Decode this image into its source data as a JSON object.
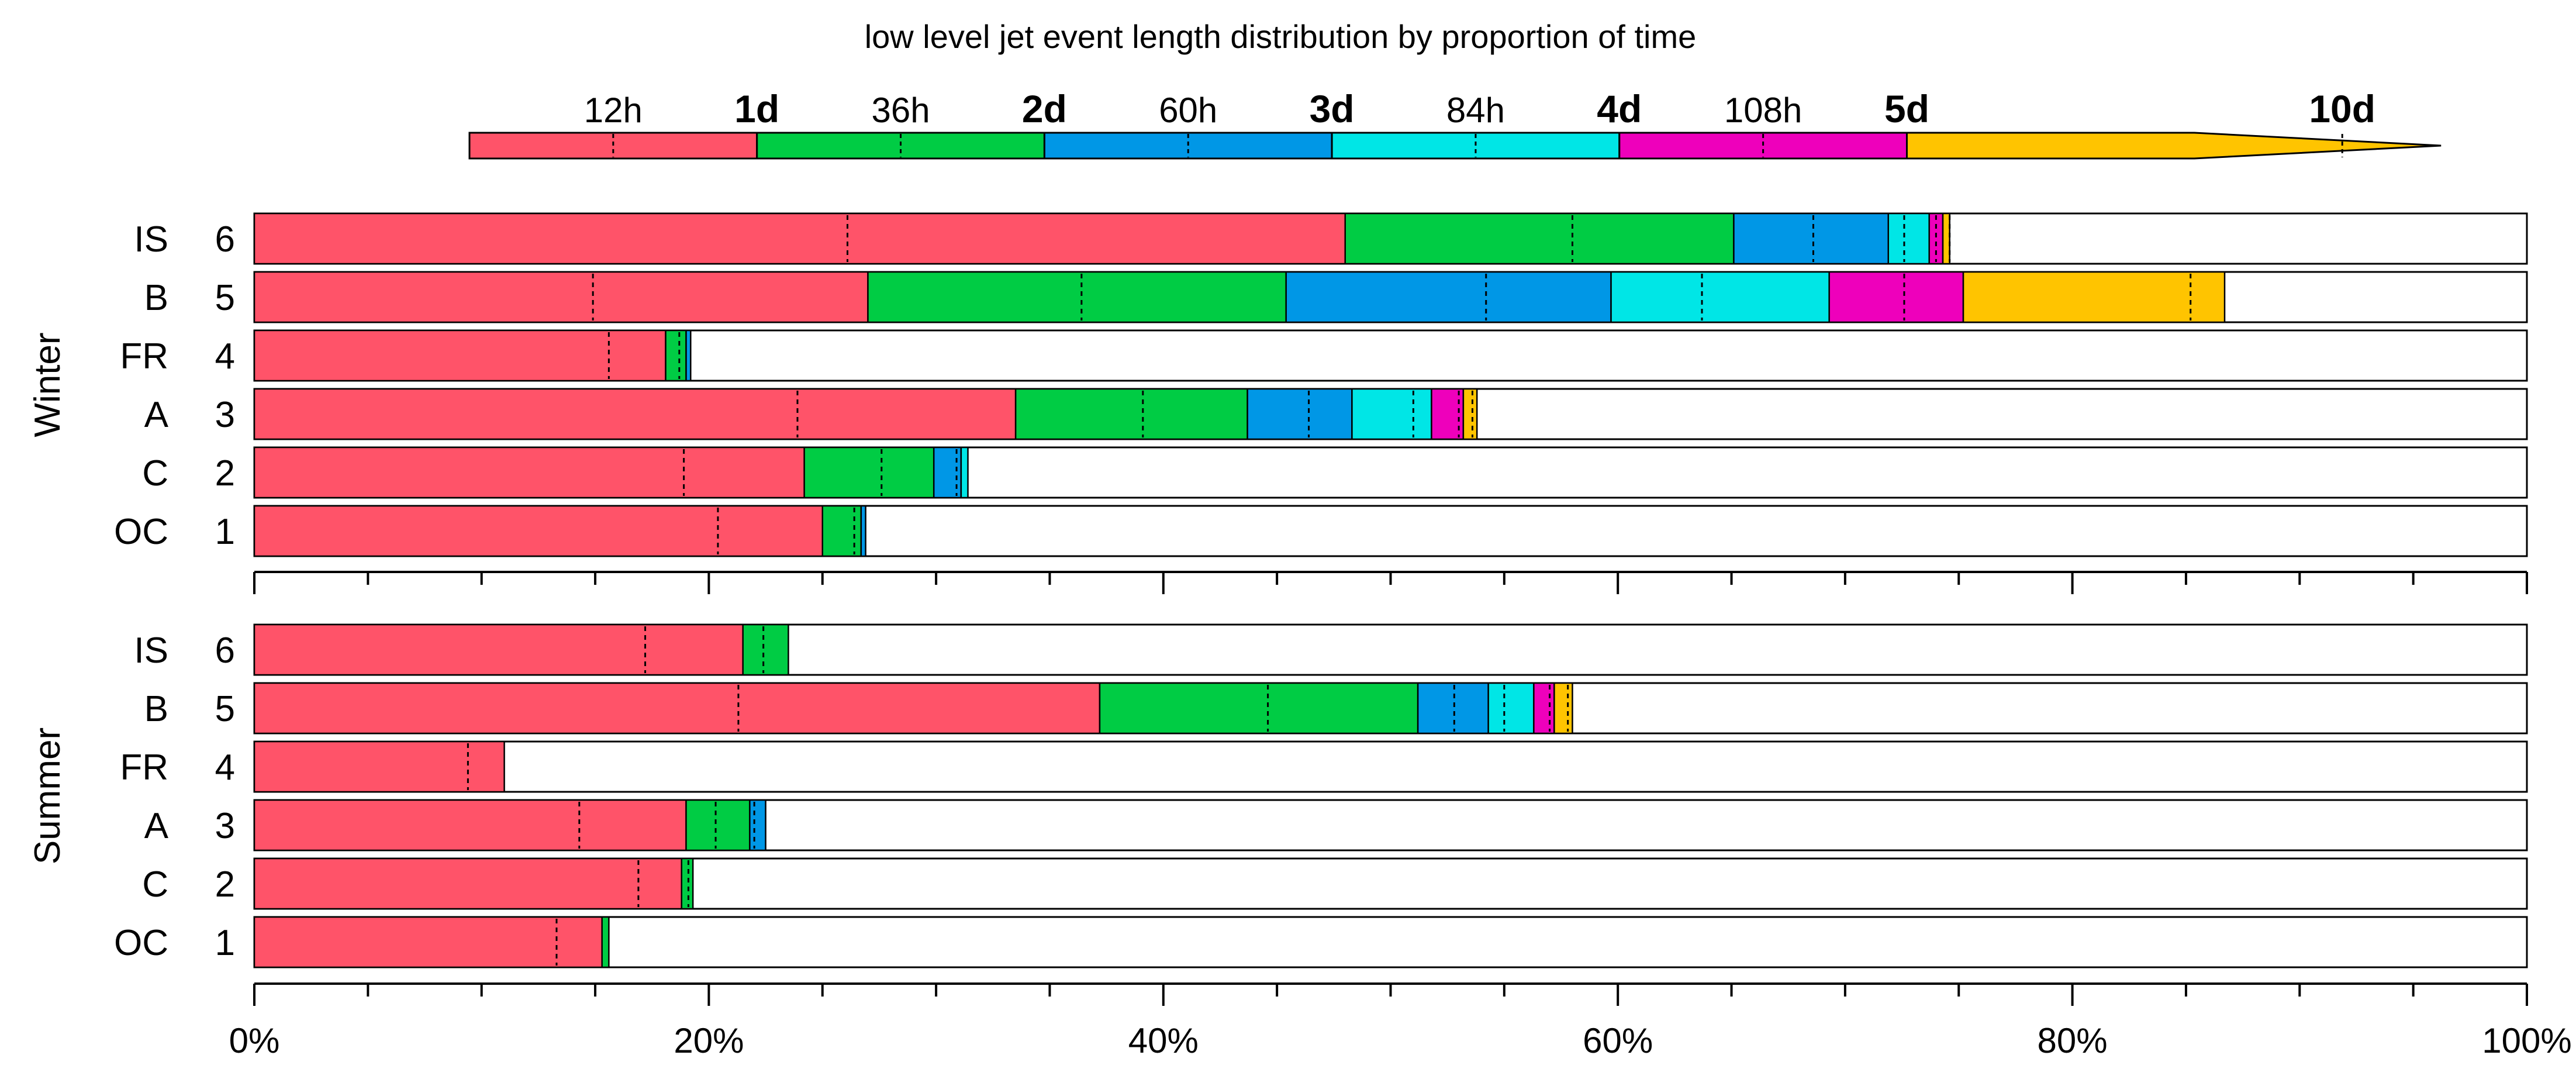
{
  "chart_data": {
    "type": "bar",
    "orientation": "horizontal",
    "stacked": true,
    "title": "low level jet event length distribution by proportion of time",
    "legend": {
      "placement": "top",
      "shape": "arrow",
      "entries": [
        {
          "label": "12h",
          "bold": false,
          "color": "#FF5369"
        },
        {
          "label": "1d",
          "bold": true,
          "color": "#00CC44"
        },
        {
          "label": "36h",
          "bold": false,
          "color": "#0097E6"
        },
        {
          "label": "2d",
          "bold": true,
          "color": "#00E6E6"
        },
        {
          "label": "60h",
          "bold": false,
          "color": "#EE00BB"
        },
        {
          "label": "3d",
          "bold": true,
          "color": "#FFC400"
        },
        {
          "label": "84h",
          "bold": false
        },
        {
          "label": "4d",
          "bold": true
        },
        {
          "label": "108h",
          "bold": false
        },
        {
          "label": "5d",
          "bold": true
        },
        {
          "label": "10d",
          "bold": true
        }
      ]
    },
    "xaxis": {
      "min": 0,
      "max": 100,
      "ticks": [
        "0%",
        "20%",
        "40%",
        "60%",
        "80%",
        "100%"
      ]
    },
    "panels": [
      {
        "name": "Winter",
        "rows": [
          {
            "region": "IS",
            "rank": "6",
            "segments": [
              48.0,
              17.1,
              6.8,
              1.8,
              0.6,
              0.3
            ],
            "dashes": [
              26.1,
              58.0,
              68.6,
              72.6,
              74.0,
              74.6
            ]
          },
          {
            "region": "B",
            "rank": "5",
            "segments": [
              27.0,
              18.4,
              14.3,
              9.6,
              5.9,
              11.5
            ],
            "dashes": [
              14.9,
              36.4,
              54.2,
              63.7,
              72.6,
              85.2
            ]
          },
          {
            "region": "FR",
            "rank": "4",
            "segments": [
              18.1,
              0.9,
              0.2
            ],
            "dashes": [
              15.6,
              18.7
            ]
          },
          {
            "region": "A",
            "rank": "3",
            "segments": [
              33.5,
              10.2,
              4.6,
              3.5,
              1.4,
              0.6
            ],
            "dashes": [
              23.9,
              39.1,
              46.4,
              51.0,
              53.0,
              53.6
            ]
          },
          {
            "region": "C",
            "rank": "2",
            "segments": [
              24.2,
              5.7,
              1.2,
              0.3
            ],
            "dashes": [
              18.9,
              27.6,
              30.9
            ]
          },
          {
            "region": "OC",
            "rank": "1",
            "segments": [
              25.0,
              1.7,
              0.2
            ],
            "dashes": [
              20.4,
              26.4
            ]
          }
        ]
      },
      {
        "name": "Summer",
        "rows": [
          {
            "region": "IS",
            "rank": "6",
            "segments": [
              21.5,
              2.0
            ],
            "dashes": [
              17.2,
              22.4
            ]
          },
          {
            "region": "B",
            "rank": "5",
            "segments": [
              37.2,
              14.0,
              3.1,
              2.0,
              0.9,
              0.8
            ],
            "dashes": [
              21.3,
              44.6,
              52.8,
              55.0,
              57.0,
              57.8
            ]
          },
          {
            "region": "FR",
            "rank": "4",
            "segments": [
              11.0
            ],
            "dashes": [
              9.4
            ]
          },
          {
            "region": "A",
            "rank": "3",
            "segments": [
              19.0,
              2.8,
              0.7
            ],
            "dashes": [
              14.3,
              20.3,
              22.0
            ]
          },
          {
            "region": "C",
            "rank": "2",
            "segments": [
              18.8,
              0.5
            ],
            "dashes": [
              16.9,
              19.1
            ]
          },
          {
            "region": "OC",
            "rank": "1",
            "segments": [
              15.3,
              0.3
            ],
            "dashes": [
              13.3
            ]
          }
        ]
      }
    ]
  }
}
